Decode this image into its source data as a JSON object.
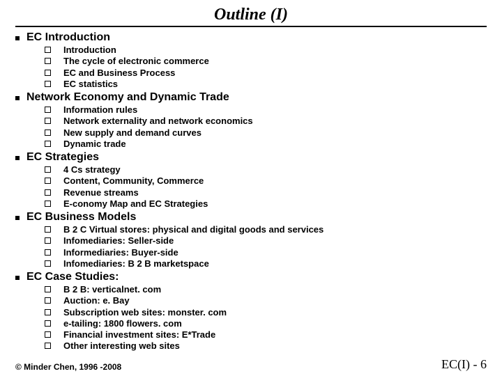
{
  "title": "Outline (I)",
  "sections": [
    {
      "heading": "EC Introduction",
      "items": [
        "Introduction",
        "The cycle of electronic commerce",
        "EC and Business Process",
        "EC statistics"
      ]
    },
    {
      "heading": "Network Economy and Dynamic Trade",
      "items": [
        "Information rules",
        "Network externality and network economics",
        "New supply and demand curves",
        "Dynamic trade"
      ]
    },
    {
      "heading": "EC Strategies",
      "items": [
        "4 Cs strategy",
        "Content, Community, Commerce",
        "Revenue streams",
        "E-conomy Map and EC Strategies"
      ]
    },
    {
      "heading": "EC Business Models",
      "items": [
        "B 2 C Virtual stores: physical and digital goods and services",
        "Infomediaries: Seller-side",
        "Informediaries: Buyer-side",
        "Infomediaries: B 2 B marketspace"
      ]
    },
    {
      "heading": "EC Case Studies:",
      "items": [
        "B 2 B: verticalnet. com",
        "Auction: e. Bay",
        "Subscription web sites: monster. com",
        "e-tailing: 1800 flowers. com",
        "Financial investment sites: E*Trade",
        "Other interesting web sites"
      ]
    }
  ],
  "footer": {
    "copyright": "© Minder Chen, 1996 -2008",
    "page": "EC(I) - 6"
  },
  "style": {
    "background_color": "#ffffff",
    "text_color": "#000000",
    "title_fontsize": 24,
    "section_fontsize": 16,
    "item_fontsize": 13,
    "footer_fontsize": 12,
    "page_fontsize": 18,
    "rule_width": 2,
    "bullet_square_size": 6,
    "checkbox_size": 9
  }
}
